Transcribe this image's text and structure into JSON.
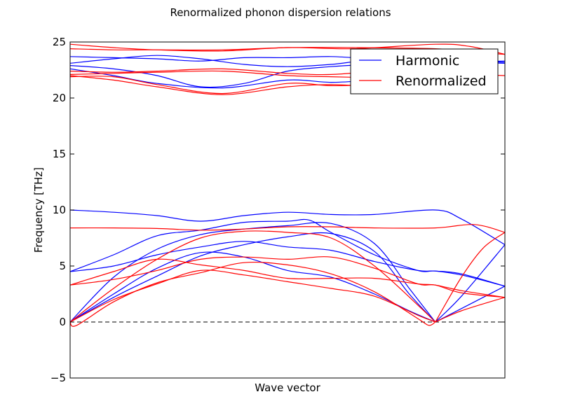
{
  "chart_data": {
    "type": "line",
    "title": "Renormalized phonon dispersion relations",
    "xlabel": "Wave vector",
    "ylabel": "Frequency [THz]",
    "xlim": [
      0,
      1
    ],
    "ylim": [
      -5,
      25
    ],
    "yticks": [
      -5,
      0,
      5,
      10,
      15,
      20,
      25
    ],
    "ytick_labels": [
      "−5",
      "0",
      "5",
      "10",
      "15",
      "20",
      "25"
    ],
    "legend_placement": "top-right",
    "zero_line": {
      "y": 0,
      "style": "dashed",
      "color": "#000000"
    },
    "colors": {
      "harmonic": "#0000ff",
      "renormalized": "#ff0000"
    },
    "series": [
      {
        "name": "Harmonic",
        "color": "#0000ff",
        "branches": [
          [
            [
              0,
              0
            ],
            [
              0.1,
              2.2
            ],
            [
              0.2,
              4.1
            ],
            [
              0.3,
              5.9
            ],
            [
              0.4,
              6.9
            ],
            [
              0.5,
              7.6
            ],
            [
              0.6,
              7.9
            ],
            [
              0.7,
              6.3
            ],
            [
              0.78,
              2.5
            ],
            [
              0.84,
              0
            ]
          ],
          [
            [
              0,
              0
            ],
            [
              0.1,
              2.5
            ],
            [
              0.2,
              4.8
            ],
            [
              0.3,
              6.2
            ],
            [
              0.4,
              5.8
            ],
            [
              0.5,
              4.6
            ],
            [
              0.6,
              4.0
            ],
            [
              0.7,
              2.5
            ],
            [
              0.78,
              1.0
            ],
            [
              0.84,
              0
            ]
          ],
          [
            [
              0,
              0
            ],
            [
              0.1,
              4.0
            ],
            [
              0.2,
              6.5
            ],
            [
              0.3,
              7.8
            ],
            [
              0.4,
              8.3
            ],
            [
              0.5,
              8.6
            ],
            [
              0.6,
              8.8
            ],
            [
              0.7,
              7.0
            ],
            [
              0.78,
              3.0
            ],
            [
              0.84,
              0
            ]
          ],
          [
            [
              0,
              4.5
            ],
            [
              0.1,
              6.0
            ],
            [
              0.2,
              7.7
            ],
            [
              0.3,
              8.2
            ],
            [
              0.4,
              8.9
            ],
            [
              0.5,
              9.0
            ],
            [
              0.55,
              9.1
            ],
            [
              0.6,
              8.0
            ],
            [
              0.7,
              6.0
            ],
            [
              0.8,
              4.6
            ],
            [
              0.84,
              4.55
            ],
            [
              0.9,
              4.2
            ],
            [
              1.0,
              3.2
            ]
          ],
          [
            [
              0,
              4.5
            ],
            [
              0.1,
              5.0
            ],
            [
              0.2,
              6.0
            ],
            [
              0.3,
              6.7
            ],
            [
              0.4,
              7.2
            ],
            [
              0.5,
              6.7
            ],
            [
              0.6,
              6.4
            ],
            [
              0.7,
              5.4
            ],
            [
              0.8,
              4.6
            ],
            [
              0.84,
              4.55
            ],
            [
              0.9,
              4.3
            ],
            [
              1.0,
              3.2
            ]
          ],
          [
            [
              0,
              10.0
            ],
            [
              0.1,
              9.8
            ],
            [
              0.2,
              9.5
            ],
            [
              0.3,
              9.0
            ],
            [
              0.4,
              9.5
            ],
            [
              0.5,
              9.8
            ],
            [
              0.6,
              9.6
            ],
            [
              0.7,
              9.6
            ],
            [
              0.84,
              10.0
            ],
            [
              0.9,
              9.2
            ],
            [
              1.0,
              6.9
            ]
          ],
          [
            [
              0.84,
              0
            ],
            [
              0.9,
              2.3
            ],
            [
              1.0,
              6.9
            ]
          ],
          [
            [
              0.84,
              0
            ],
            [
              0.9,
              1.2
            ],
            [
              1.0,
              3.2
            ]
          ],
          [
            [
              0,
              23.7
            ],
            [
              0.1,
              23.6
            ],
            [
              0.2,
              23.5
            ],
            [
              0.3,
              23.3
            ],
            [
              0.4,
              23.6
            ],
            [
              0.5,
              23.6
            ],
            [
              0.6,
              23.7
            ],
            [
              0.7,
              23.5
            ],
            [
              0.84,
              23.5
            ],
            [
              0.9,
              23.3
            ],
            [
              1.0,
              23.2
            ]
          ],
          [
            [
              0,
              23.1
            ],
            [
              0.1,
              23.5
            ],
            [
              0.2,
              23.8
            ],
            [
              0.3,
              23.5
            ],
            [
              0.4,
              23.0
            ],
            [
              0.5,
              22.8
            ],
            [
              0.6,
              23.0
            ],
            [
              0.7,
              23.4
            ],
            [
              0.84,
              23.3
            ],
            [
              0.9,
              23.2
            ],
            [
              1.0,
              23.1
            ]
          ],
          [
            [
              0,
              22.9
            ],
            [
              0.1,
              22.6
            ],
            [
              0.2,
              22.0
            ],
            [
              0.3,
              21.0
            ],
            [
              0.4,
              21.3
            ],
            [
              0.5,
              22.4
            ],
            [
              0.6,
              22.8
            ],
            [
              0.7,
              23.0
            ],
            [
              0.84,
              23.0
            ],
            [
              0.9,
              23.2
            ],
            [
              1.0,
              23.3
            ]
          ],
          [
            [
              0,
              22.6
            ],
            [
              0.1,
              22.0
            ],
            [
              0.2,
              21.3
            ],
            [
              0.35,
              20.9
            ],
            [
              0.5,
              21.6
            ],
            [
              0.6,
              21.4
            ],
            [
              0.7,
              21.6
            ]
          ]
        ]
      },
      {
        "name": "Renormalized",
        "color": "#ff0000",
        "branches": [
          [
            [
              0,
              0
            ],
            [
              0.015,
              -0.3
            ],
            [
              0.1,
              1.8
            ],
            [
              0.2,
              3.5
            ],
            [
              0.3,
              4.4
            ],
            [
              0.4,
              5.3
            ],
            [
              0.5,
              5.1
            ],
            [
              0.6,
              4.3
            ],
            [
              0.7,
              2.7
            ],
            [
              0.8,
              0.3
            ],
            [
              0.825,
              -0.3
            ],
            [
              0.84,
              0
            ]
          ],
          [
            [
              0,
              0
            ],
            [
              0.1,
              2.0
            ],
            [
              0.2,
              3.4
            ],
            [
              0.3,
              4.6
            ],
            [
              0.4,
              4.2
            ],
            [
              0.5,
              3.6
            ],
            [
              0.6,
              3.0
            ],
            [
              0.7,
              2.3
            ],
            [
              0.8,
              0.6
            ],
            [
              0.84,
              0
            ]
          ],
          [
            [
              0,
              3.3
            ],
            [
              0.1,
              4.5
            ],
            [
              0.2,
              5.6
            ],
            [
              0.3,
              5.1
            ],
            [
              0.4,
              4.6
            ],
            [
              0.5,
              3.9
            ],
            [
              0.6,
              3.9
            ],
            [
              0.7,
              3.9
            ],
            [
              0.8,
              3.4
            ],
            [
              0.84,
              3.3
            ],
            [
              0.9,
              2.8
            ],
            [
              1.0,
              2.2
            ]
          ],
          [
            [
              0,
              3.3
            ],
            [
              0.1,
              3.8
            ],
            [
              0.2,
              4.6
            ],
            [
              0.3,
              5.6
            ],
            [
              0.4,
              5.8
            ],
            [
              0.5,
              5.6
            ],
            [
              0.6,
              5.8
            ],
            [
              0.7,
              4.8
            ],
            [
              0.8,
              3.4
            ],
            [
              0.84,
              3.3
            ],
            [
              0.9,
              2.6
            ],
            [
              1.0,
              2.2
            ]
          ],
          [
            [
              0,
              0
            ],
            [
              0.1,
              3.0
            ],
            [
              0.2,
              5.6
            ],
            [
              0.3,
              7.5
            ],
            [
              0.4,
              8.1
            ],
            [
              0.5,
              8.0
            ],
            [
              0.6,
              7.5
            ],
            [
              0.7,
              5.0
            ],
            [
              0.8,
              1.5
            ],
            [
              0.84,
              0
            ]
          ],
          [
            [
              0,
              8.4
            ],
            [
              0.1,
              8.4
            ],
            [
              0.2,
              8.35
            ],
            [
              0.3,
              8.2
            ],
            [
              0.4,
              8.3
            ],
            [
              0.5,
              8.5
            ],
            [
              0.6,
              8.5
            ],
            [
              0.7,
              8.4
            ],
            [
              0.84,
              8.4
            ],
            [
              0.93,
              8.7
            ],
            [
              1.0,
              8.0
            ]
          ],
          [
            [
              0.84,
              0
            ],
            [
              0.9,
              4.0
            ],
            [
              0.95,
              6.6
            ],
            [
              1.0,
              8.0
            ]
          ],
          [
            [
              0.84,
              0
            ],
            [
              0.9,
              1.0
            ],
            [
              1.0,
              2.2
            ]
          ],
          [
            [
              0,
              24.8
            ],
            [
              0.1,
              24.5
            ],
            [
              0.2,
              24.3
            ],
            [
              0.35,
              24.2
            ],
            [
              0.5,
              24.5
            ],
            [
              0.65,
              24.4
            ],
            [
              0.84,
              24.8
            ],
            [
              0.92,
              24.6
            ],
            [
              1.0,
              23.9
            ]
          ],
          [
            [
              0,
              24.4
            ],
            [
              0.1,
              24.3
            ],
            [
              0.2,
              24.3
            ],
            [
              0.35,
              24.3
            ],
            [
              0.5,
              24.5
            ],
            [
              0.65,
              24.5
            ],
            [
              0.84,
              24.4
            ],
            [
              0.92,
              24.1
            ],
            [
              1.0,
              23.9
            ]
          ],
          [
            [
              0,
              22.4
            ],
            [
              0.1,
              22.3
            ],
            [
              0.2,
              22.4
            ],
            [
              0.35,
              22.6
            ],
            [
              0.5,
              22.2
            ],
            [
              0.6,
              22.1
            ],
            [
              0.7,
              22.4
            ]
          ],
          [
            [
              0,
              22.1
            ],
            [
              0.1,
              22.2
            ],
            [
              0.2,
              22.3
            ],
            [
              0.35,
              22.4
            ],
            [
              0.5,
              22.0
            ],
            [
              0.6,
              21.9
            ],
            [
              0.7,
              21.8
            ]
          ],
          [
            [
              0,
              21.9
            ],
            [
              0.1,
              21.9
            ],
            [
              0.2,
              21.2
            ],
            [
              0.35,
              20.4
            ],
            [
              0.5,
              21.3
            ],
            [
              0.6,
              21.1
            ],
            [
              0.7,
              21.2
            ]
          ],
          [
            [
              0,
              22.0
            ],
            [
              0.1,
              21.6
            ],
            [
              0.2,
              21.0
            ],
            [
              0.35,
              20.3
            ],
            [
              0.5,
              21.0
            ],
            [
              0.6,
              21.2
            ],
            [
              0.7,
              21.0
            ]
          ],
          [
            [
              0.92,
              22.1
            ],
            [
              1.0,
              22.0
            ]
          ]
        ]
      }
    ]
  }
}
